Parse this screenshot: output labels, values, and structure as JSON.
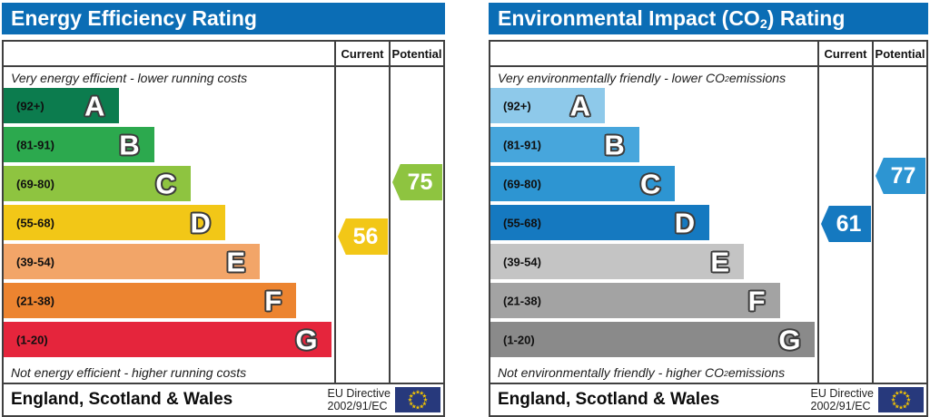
{
  "chart_data": [
    {
      "type": "bar",
      "title": {
        "pre": "Energy Efficiency Rating",
        "sub": "",
        "post": ""
      },
      "columns": {
        "current": "Current",
        "potential": "Potential"
      },
      "top_label": {
        "pre": "Very energy efficient - lower running costs",
        "sub": "",
        "post": ""
      },
      "bottom_label": {
        "pre": "Not energy efficient - higher running costs",
        "sub": "",
        "post": ""
      },
      "bands": [
        {
          "letter": "A",
          "range": "(92+)",
          "min": 92,
          "max": 100,
          "color": "#0c7c4e",
          "width_pct": 35
        },
        {
          "letter": "B",
          "range": "(81-91)",
          "min": 81,
          "max": 91,
          "color": "#2ca94e",
          "width_pct": 45.5
        },
        {
          "letter": "C",
          "range": "(69-80)",
          "min": 69,
          "max": 80,
          "color": "#8ec440",
          "width_pct": 56.5
        },
        {
          "letter": "D",
          "range": "(55-68)",
          "min": 55,
          "max": 68,
          "color": "#f2c717",
          "width_pct": 67
        },
        {
          "letter": "E",
          "range": "(39-54)",
          "min": 39,
          "max": 54,
          "color": "#f2a568",
          "width_pct": 77.5
        },
        {
          "letter": "F",
          "range": "(21-38)",
          "min": 21,
          "max": 38,
          "color": "#ec8430",
          "width_pct": 88.5
        },
        {
          "letter": "G",
          "range": "(1-20)",
          "min": 1,
          "max": 20,
          "color": "#e5253c",
          "width_pct": 99.3
        }
      ],
      "current": {
        "value": 56,
        "band": "D",
        "color": "#f2c717"
      },
      "potential": {
        "value": 75,
        "band": "C",
        "color": "#8ec440"
      },
      "footer": {
        "region": "England, Scotland & Wales",
        "directive_line1": "EU Directive",
        "directive_line2": "2002/91/EC"
      },
      "accent_color": "#0b6db5"
    },
    {
      "type": "bar",
      "title": {
        "pre": "Environmental Impact (CO",
        "sub": "2",
        "post": ") Rating"
      },
      "columns": {
        "current": "Current",
        "potential": "Potential"
      },
      "top_label": {
        "pre": "Very environmentally friendly - lower CO",
        "sub": "2",
        "post": " emissions"
      },
      "bottom_label": {
        "pre": "Not environmentally friendly - higher CO",
        "sub": "2",
        "post": " emissions"
      },
      "bands": [
        {
          "letter": "A",
          "range": "(92+)",
          "min": 92,
          "max": 100,
          "color": "#8ec9ea",
          "width_pct": 35
        },
        {
          "letter": "B",
          "range": "(81-91)",
          "min": 81,
          "max": 91,
          "color": "#47a6dc",
          "width_pct": 45.5
        },
        {
          "letter": "C",
          "range": "(69-80)",
          "min": 69,
          "max": 80,
          "color": "#2d95d2",
          "width_pct": 56.5
        },
        {
          "letter": "D",
          "range": "(55-68)",
          "min": 55,
          "max": 68,
          "color": "#1579c0",
          "width_pct": 67
        },
        {
          "letter": "E",
          "range": "(39-54)",
          "min": 39,
          "max": 54,
          "color": "#c4c4c4",
          "width_pct": 77.5
        },
        {
          "letter": "F",
          "range": "(21-38)",
          "min": 21,
          "max": 38,
          "color": "#a3a3a3",
          "width_pct": 88.5
        },
        {
          "letter": "G",
          "range": "(1-20)",
          "min": 1,
          "max": 20,
          "color": "#8a8a8a",
          "width_pct": 99.3
        }
      ],
      "current": {
        "value": 61,
        "band": "D",
        "color": "#1579c0"
      },
      "potential": {
        "value": 77,
        "band": "C",
        "color": "#2d95d2"
      },
      "footer": {
        "region": "England, Scotland & Wales",
        "directive_line1": "EU Directive",
        "directive_line2": "2002/91/EC"
      },
      "accent_color": "#0b6db5"
    }
  ]
}
